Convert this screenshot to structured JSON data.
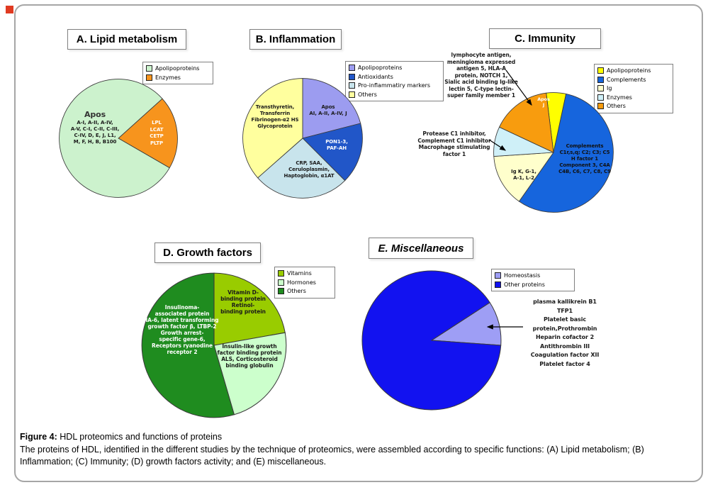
{
  "figure": {
    "caption_label": "Figure 4:",
    "caption_title": " HDL proteomics and functions of proteins",
    "caption_body": "The proteins of HDL, identified in the different studies by the technique of proteomics, were assembled according to specific functions: (A) Lipid metabolism; (B) Inflammation; (C) Immunity; (D) growth factors activity; and (E) miscellaneous."
  },
  "chart_data": [
    {
      "id": "A",
      "type": "pie",
      "title": "A. Lipid metabolism",
      "start_angle_deg": 42,
      "legend": [
        {
          "label": "Apolipoproteins",
          "color": "#CCF2CD"
        },
        {
          "label": "Enzymes",
          "color": "#F7941D"
        }
      ],
      "slices": [
        {
          "name": "Enzymes",
          "pct": 20,
          "color": "#F7941D",
          "proteins": "LPL, LCAT, CETP, PLTP"
        },
        {
          "name": "Apolipoproteins",
          "pct": 80,
          "color": "#CCF2CD",
          "proteins": "Apos A-I, A-II, A-IV, A-V, C-I, C-II, C-III, C-IV, D, E, J, L1, M, F, H, B, B100"
        }
      ],
      "labels": {
        "apos_title": "Apos",
        "apos_body": "A-I, A-II, A-IV,\nA-V, C-I, C-II, C-III,\nC-IV, D, E, J, L1,\nM, F, H, B, B100",
        "enzymes": "LPL\nLCAT\nCETP\nPLTP"
      }
    },
    {
      "id": "B",
      "type": "pie",
      "title": "B. Inflammation",
      "start_angle_deg": 90,
      "legend": [
        {
          "label": "Apolipoproteins",
          "color": "#9C9CF0"
        },
        {
          "label": "Antioxidants",
          "color": "#2156C8"
        },
        {
          "label": "Pro-inflammatiry markers",
          "color": "#C8E4EC"
        },
        {
          "label": "Others",
          "color": "#FFFF9E"
        }
      ],
      "slices": [
        {
          "name": "Apolipoproteins",
          "pct": 21,
          "color": "#9C9CF0",
          "proteins": "Apos AI, A-II, A-IV, J"
        },
        {
          "name": "Antioxidants",
          "pct": 16.5,
          "color": "#2156C8",
          "proteins": "PON1-3, PAF-AH"
        },
        {
          "name": "Pro-inflammatiry markers",
          "pct": 26,
          "color": "#C8E4EC",
          "proteins": "CRP, SAA, Ceruloplasmin, Haptoglobin, α1AT"
        },
        {
          "name": "Others",
          "pct": 36.5,
          "color": "#FFFF9E",
          "proteins": "Transthyretin, Transferrin, Fibrinogen-α2 HS Glycoprotein"
        }
      ],
      "labels": {
        "apolipoproteins": "Apos\nAI, A-II, A-IV, J",
        "antioxidants": "PON1-3,\nPAF-AH",
        "proinflammatory": "CRP, SAA,\nCeruloplasmin,\nHaptoglobin, α1AT",
        "others": "Transthyretin,\nTransferrin\nFibrinogen-α2 HS\nGlycoprotein"
      }
    },
    {
      "id": "C",
      "type": "pie",
      "title": "C. Immunity",
      "start_angle_deg": 97,
      "legend": [
        {
          "label": "Apolipoproteins",
          "color": "#FFFF00"
        },
        {
          "label": "Complements",
          "color": "#1665DD"
        },
        {
          "label": "Ig",
          "color": "#FFFFCC"
        },
        {
          "label": "Enzymes",
          "color": "#CFF0F8"
        },
        {
          "label": "Others",
          "color": "#F89C0E"
        }
      ],
      "slices": [
        {
          "name": "Apolipoproteins",
          "pct": 5.3,
          "color": "#FFFF00",
          "proteins": "Apos J"
        },
        {
          "name": "Complements",
          "pct": 56.4,
          "color": "#1665DD",
          "proteins": "Complements C1r,s,q; C2; C3; C5, H factor 1, Component 3, C4A, C4B, C6, C7, C8, C9"
        },
        {
          "name": "Ig",
          "pct": 14.2,
          "color": "#FFFFCC",
          "proteins": "Ig K, G-1, A-1, L-2"
        },
        {
          "name": "Enzymes",
          "pct": 8,
          "color": "#CFF0F8",
          "proteins": "Protease C1 inhibitor, Complement C1 inhibitor, Macrophage stimulating factor 1"
        },
        {
          "name": "Others",
          "pct": 16.1,
          "color": "#F89C0E",
          "proteins": "lymphocyte antigen, meningioma expressed antigen 5, HLA-A protein, NOTCH 1, Sialic acid binding Ig-like lectin 5, C-type lectin-super family member 1"
        }
      ],
      "labels": {
        "apolipoproteins": "Apos\nJ",
        "complements": "Complements\nC1r,s,q; C2; C3; C5\nH factor 1\nComponent 3, C4A\nC4B, C6, C7, C8, C9",
        "ig": "Ig K, G-1,\nA-1, L-2"
      },
      "annotations": [
        {
          "text": "lymphocyte antigen,\nmeningioma expressed\nantigen 5, HLA-A\nprotein, NOTCH 1,\nSialic acid binding Ig-like\nlectin 5, C-type lectin-\nsuper family member 1"
        },
        {
          "text": "Protease C1 inhibitor,\nComplement C1 inhibitor\nMacrophage stimulating\nfactor 1"
        }
      ]
    },
    {
      "id": "D",
      "type": "pie",
      "title": "D. Growth factors",
      "start_angle_deg": 90,
      "legend": [
        {
          "label": "Vitamins",
          "color": "#99CC00"
        },
        {
          "label": "Hormones",
          "color": "#CCFFCC"
        },
        {
          "label": "Others",
          "color": "#1F8C1F"
        }
      ],
      "slices": [
        {
          "name": "Vitamins",
          "pct": 22.2,
          "color": "#99CC00",
          "proteins": "Vitamin D-binding protein, Retinol-binding protein"
        },
        {
          "name": "Hormones",
          "pct": 23.3,
          "color": "#CCFFCC",
          "proteins": "Insulin-like growth factor binding protein ALS, Corticosteroid binding globulin"
        },
        {
          "name": "Others",
          "pct": 54.5,
          "color": "#1F8C1F",
          "proteins": "Insulinoma-associated protein IA-6, latent transforming growth factor β, LTBP-2, Growth arrest-specific gene-6, Receptors ryanodine receptor 2"
        }
      ],
      "labels": {
        "vitamins": "Vitamin D-\nbinding protein\nRetinol-\nbinding protein",
        "hormones": "Insulin-like growth\nfactor binding protein\nALS, Corticosteroid\nbinding globulin",
        "others": "Insulinoma-\nassociated protein\nIA-6, latent transforming\ngrowth factor β, LTBP-2\nGrowth arrest-\nspecific gene-6,\nReceptors ryanodine\nreceptor 2"
      }
    },
    {
      "id": "E",
      "type": "pie",
      "title": "E. Miscellaneous",
      "start_angle_deg": 33,
      "legend": [
        {
          "label": "Homeostasis",
          "color": "#9E9EF5"
        },
        {
          "label": "Other proteins",
          "color": "#1212F0"
        }
      ],
      "slices": [
        {
          "name": "Homeostasis",
          "pct": 10.3,
          "color": "#9E9EF5",
          "proteins": "plasma kallikrein B1, TFP1, Platelet basic protein, Prothrombin, Heparin cofactor 2, Antithrombin III, Coagulation factor XII, Platelet factor 4"
        },
        {
          "name": "Other proteins",
          "pct": 89.7,
          "color": "#1212F0",
          "proteins": "Other proteins"
        }
      ],
      "annotations": [
        {
          "text": "plasma kallikrein B1\nTFP1\nPlatelet basic\nprotein,Prothrombin\nHeparin cofactor 2\nAntithrombin III\nCoagulation factor XII\nPlatelet factor 4"
        }
      ]
    }
  ]
}
